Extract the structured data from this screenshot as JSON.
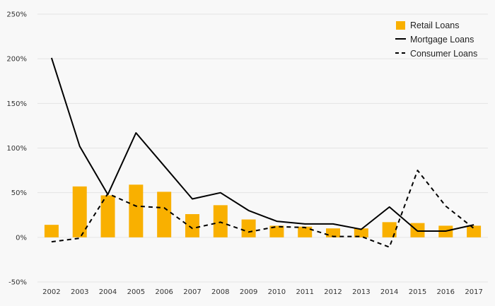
{
  "chart_data": {
    "type": "bar+line",
    "categories": [
      "2002",
      "2003",
      "2004",
      "2005",
      "2006",
      "2007",
      "2008",
      "2009",
      "2010",
      "2011",
      "2012",
      "2013",
      "2014",
      "2015",
      "2016",
      "2017"
    ],
    "series": [
      {
        "name": "Retail Loans",
        "type": "bar",
        "values": [
          14,
          57,
          47,
          59,
          51,
          26,
          36,
          20,
          13,
          12,
          10,
          10,
          17,
          16,
          13,
          13
        ]
      },
      {
        "name": "Mortgage Loans",
        "type": "line",
        "style": "solid",
        "values": [
          201,
          102,
          48,
          117,
          80,
          43,
          50,
          30,
          18,
          15,
          15,
          9,
          34,
          7,
          7,
          14
        ]
      },
      {
        "name": "Consumer Loans",
        "type": "line",
        "style": "dashed",
        "values": [
          -5,
          -1,
          49,
          35,
          33,
          10,
          17,
          6,
          12,
          11,
          1,
          1,
          -11,
          75,
          35,
          10
        ]
      }
    ],
    "yticks": [
      -50,
      0,
      50,
      100,
      150,
      200,
      250
    ],
    "ytick_labels": [
      "-50%",
      "0%",
      "50%",
      "100%",
      "150%",
      "200%",
      "250%"
    ],
    "ylim": [
      -50,
      250
    ],
    "title": "",
    "xlabel": "",
    "ylabel": "",
    "legend_position": "top-right",
    "colors": {
      "bar": "#f9b000",
      "line": "#000000",
      "grid": "#e4e4e4",
      "background": "#f8f8f8"
    }
  }
}
